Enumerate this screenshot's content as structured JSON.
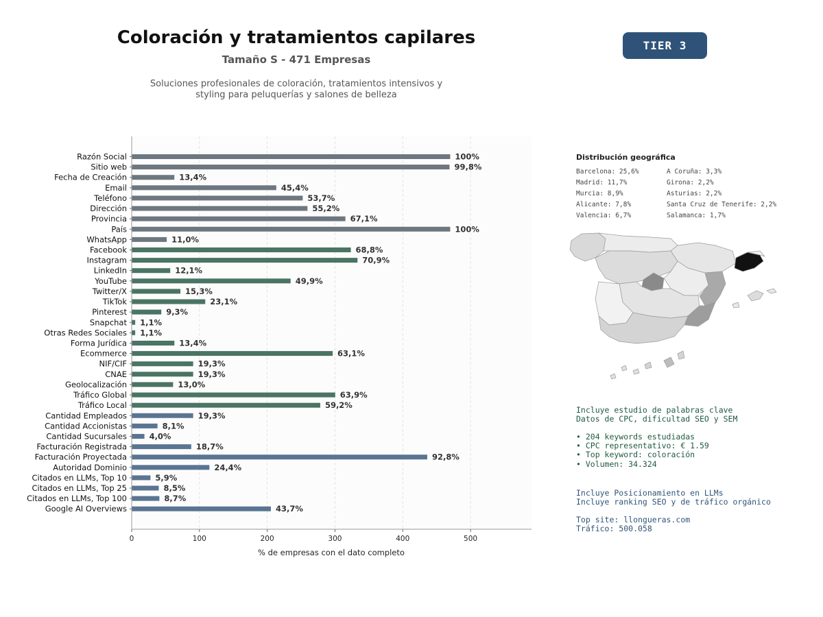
{
  "header": {
    "title": "Coloración y tratamientos capilares",
    "subtitle": "Tamaño S - 471 Empresas",
    "description_line1": "Soluciones profesionales de coloración, tratamientos intensivos y",
    "description_line2": "styling para peluquerías y salones de belleza",
    "tier": "TIER 3"
  },
  "chart_data": {
    "type": "bar",
    "orientation": "horizontal",
    "xlabel": "% de empresas con el dato completo",
    "ylabel": "",
    "xlim": [
      0,
      590
    ],
    "xticks": [
      0,
      100,
      200,
      300,
      400,
      500
    ],
    "grid": "vertical-dashed",
    "colors": {
      "group1": "#6e7780",
      "group2": "#4a7463",
      "group3": "#5a7592"
    },
    "bars": [
      {
        "label": "Razón Social",
        "value": 100,
        "text": "100%",
        "group": "group1"
      },
      {
        "label": "Sitio web",
        "value": 99.8,
        "text": "99,8%",
        "group": "group1"
      },
      {
        "label": "Fecha de Creación",
        "value": 13.4,
        "text": "13,4%",
        "group": "group1"
      },
      {
        "label": "Email",
        "value": 45.4,
        "text": "45,4%",
        "group": "group1"
      },
      {
        "label": "Teléfono",
        "value": 53.7,
        "text": "53,7%",
        "group": "group1"
      },
      {
        "label": "Dirección",
        "value": 55.2,
        "text": "55,2%",
        "group": "group1"
      },
      {
        "label": "Provincia",
        "value": 67.1,
        "text": "67,1%",
        "group": "group1"
      },
      {
        "label": "País",
        "value": 100,
        "text": "100%",
        "group": "group1"
      },
      {
        "label": "WhatsApp",
        "value": 11.0,
        "text": "11,0%",
        "group": "group1"
      },
      {
        "label": "Facebook",
        "value": 68.8,
        "text": "68,8%",
        "group": "group2"
      },
      {
        "label": "Instagram",
        "value": 70.9,
        "text": "70,9%",
        "group": "group2"
      },
      {
        "label": "LinkedIn",
        "value": 12.1,
        "text": "12,1%",
        "group": "group2"
      },
      {
        "label": "YouTube",
        "value": 49.9,
        "text": "49,9%",
        "group": "group2"
      },
      {
        "label": "Twitter/X",
        "value": 15.3,
        "text": "15,3%",
        "group": "group2"
      },
      {
        "label": "TikTok",
        "value": 23.1,
        "text": "23,1%",
        "group": "group2"
      },
      {
        "label": "Pinterest",
        "value": 9.3,
        "text": "9,3%",
        "group": "group2"
      },
      {
        "label": "Snapchat",
        "value": 1.1,
        "text": "1,1%",
        "group": "group2"
      },
      {
        "label": "Otras Redes Sociales",
        "value": 1.1,
        "text": "1,1%",
        "group": "group2"
      },
      {
        "label": "Forma Jurídica",
        "value": 13.4,
        "text": "13,4%",
        "group": "group2"
      },
      {
        "label": "Ecommerce",
        "value": 63.1,
        "text": "63,1%",
        "group": "group2"
      },
      {
        "label": "NIF/CIF",
        "value": 19.3,
        "text": "19,3%",
        "group": "group2"
      },
      {
        "label": "CNAE",
        "value": 19.3,
        "text": "19,3%",
        "group": "group2"
      },
      {
        "label": "Geolocalización",
        "value": 13.0,
        "text": "13,0%",
        "group": "group2"
      },
      {
        "label": "Tráfico Global",
        "value": 63.9,
        "text": "63,9%",
        "group": "group2"
      },
      {
        "label": "Tráfico Local",
        "value": 59.2,
        "text": "59,2%",
        "group": "group2"
      },
      {
        "label": "Cantidad Empleados",
        "value": 19.3,
        "text": "19,3%",
        "group": "group3"
      },
      {
        "label": "Cantidad Accionistas",
        "value": 8.1,
        "text": "8,1%",
        "group": "group3"
      },
      {
        "label": "Cantidad Sucursales",
        "value": 4.0,
        "text": "4,0%",
        "group": "group3"
      },
      {
        "label": "Facturación Registrada",
        "value": 18.7,
        "text": "18,7%",
        "group": "group3"
      },
      {
        "label": "Facturación Proyectada",
        "value": 92.8,
        "text": "92,8%",
        "group": "group3"
      },
      {
        "label": "Autoridad Dominio",
        "value": 24.4,
        "text": "24,4%",
        "group": "group3"
      },
      {
        "label": "Citados en LLMs, Top 10",
        "value": 5.9,
        "text": "5,9%",
        "group": "group3"
      },
      {
        "label": "Citados en LLMs, Top 25",
        "value": 8.5,
        "text": "8,5%",
        "group": "group3"
      },
      {
        "label": "Citados en LLMs, Top 100",
        "value": 8.7,
        "text": "8,7%",
        "group": "group3"
      },
      {
        "label": "Google AI Overviews",
        "value": 43.7,
        "text": "43,7%",
        "group": "group3"
      }
    ]
  },
  "geo": {
    "title": "Distribución geográfica",
    "col1": [
      "Barcelona: 25,6%",
      "Madrid: 11,7%",
      "Murcia: 8,9%",
      "Alicante: 7,8%",
      "Valencia: 6,7%"
    ],
    "col2": [
      "A Coruña: 3,3%",
      "Girona: 2,2%",
      "Asturias: 2,2%",
      "Santa Cruz de Tenerife: 2,2%",
      "Salamanca: 1,7%"
    ]
  },
  "keywords": {
    "line1": "Incluye estudio de palabras clave",
    "line2": "Datos de CPC, dificultad SEO y SEM",
    "bullets": [
      "• 204 keywords estudiadas",
      "• CPC representativo: € 1.59",
      "• Top keyword: coloración",
      "• Volumen: 34.324"
    ]
  },
  "llm": {
    "line1": "Incluye Posicionamiento en LLMs",
    "line2": "Incluye ranking SEO y de tráfico orgánico",
    "top_site": "Top site: llongueras.com",
    "traffic": "Tráfico: 500.058"
  }
}
